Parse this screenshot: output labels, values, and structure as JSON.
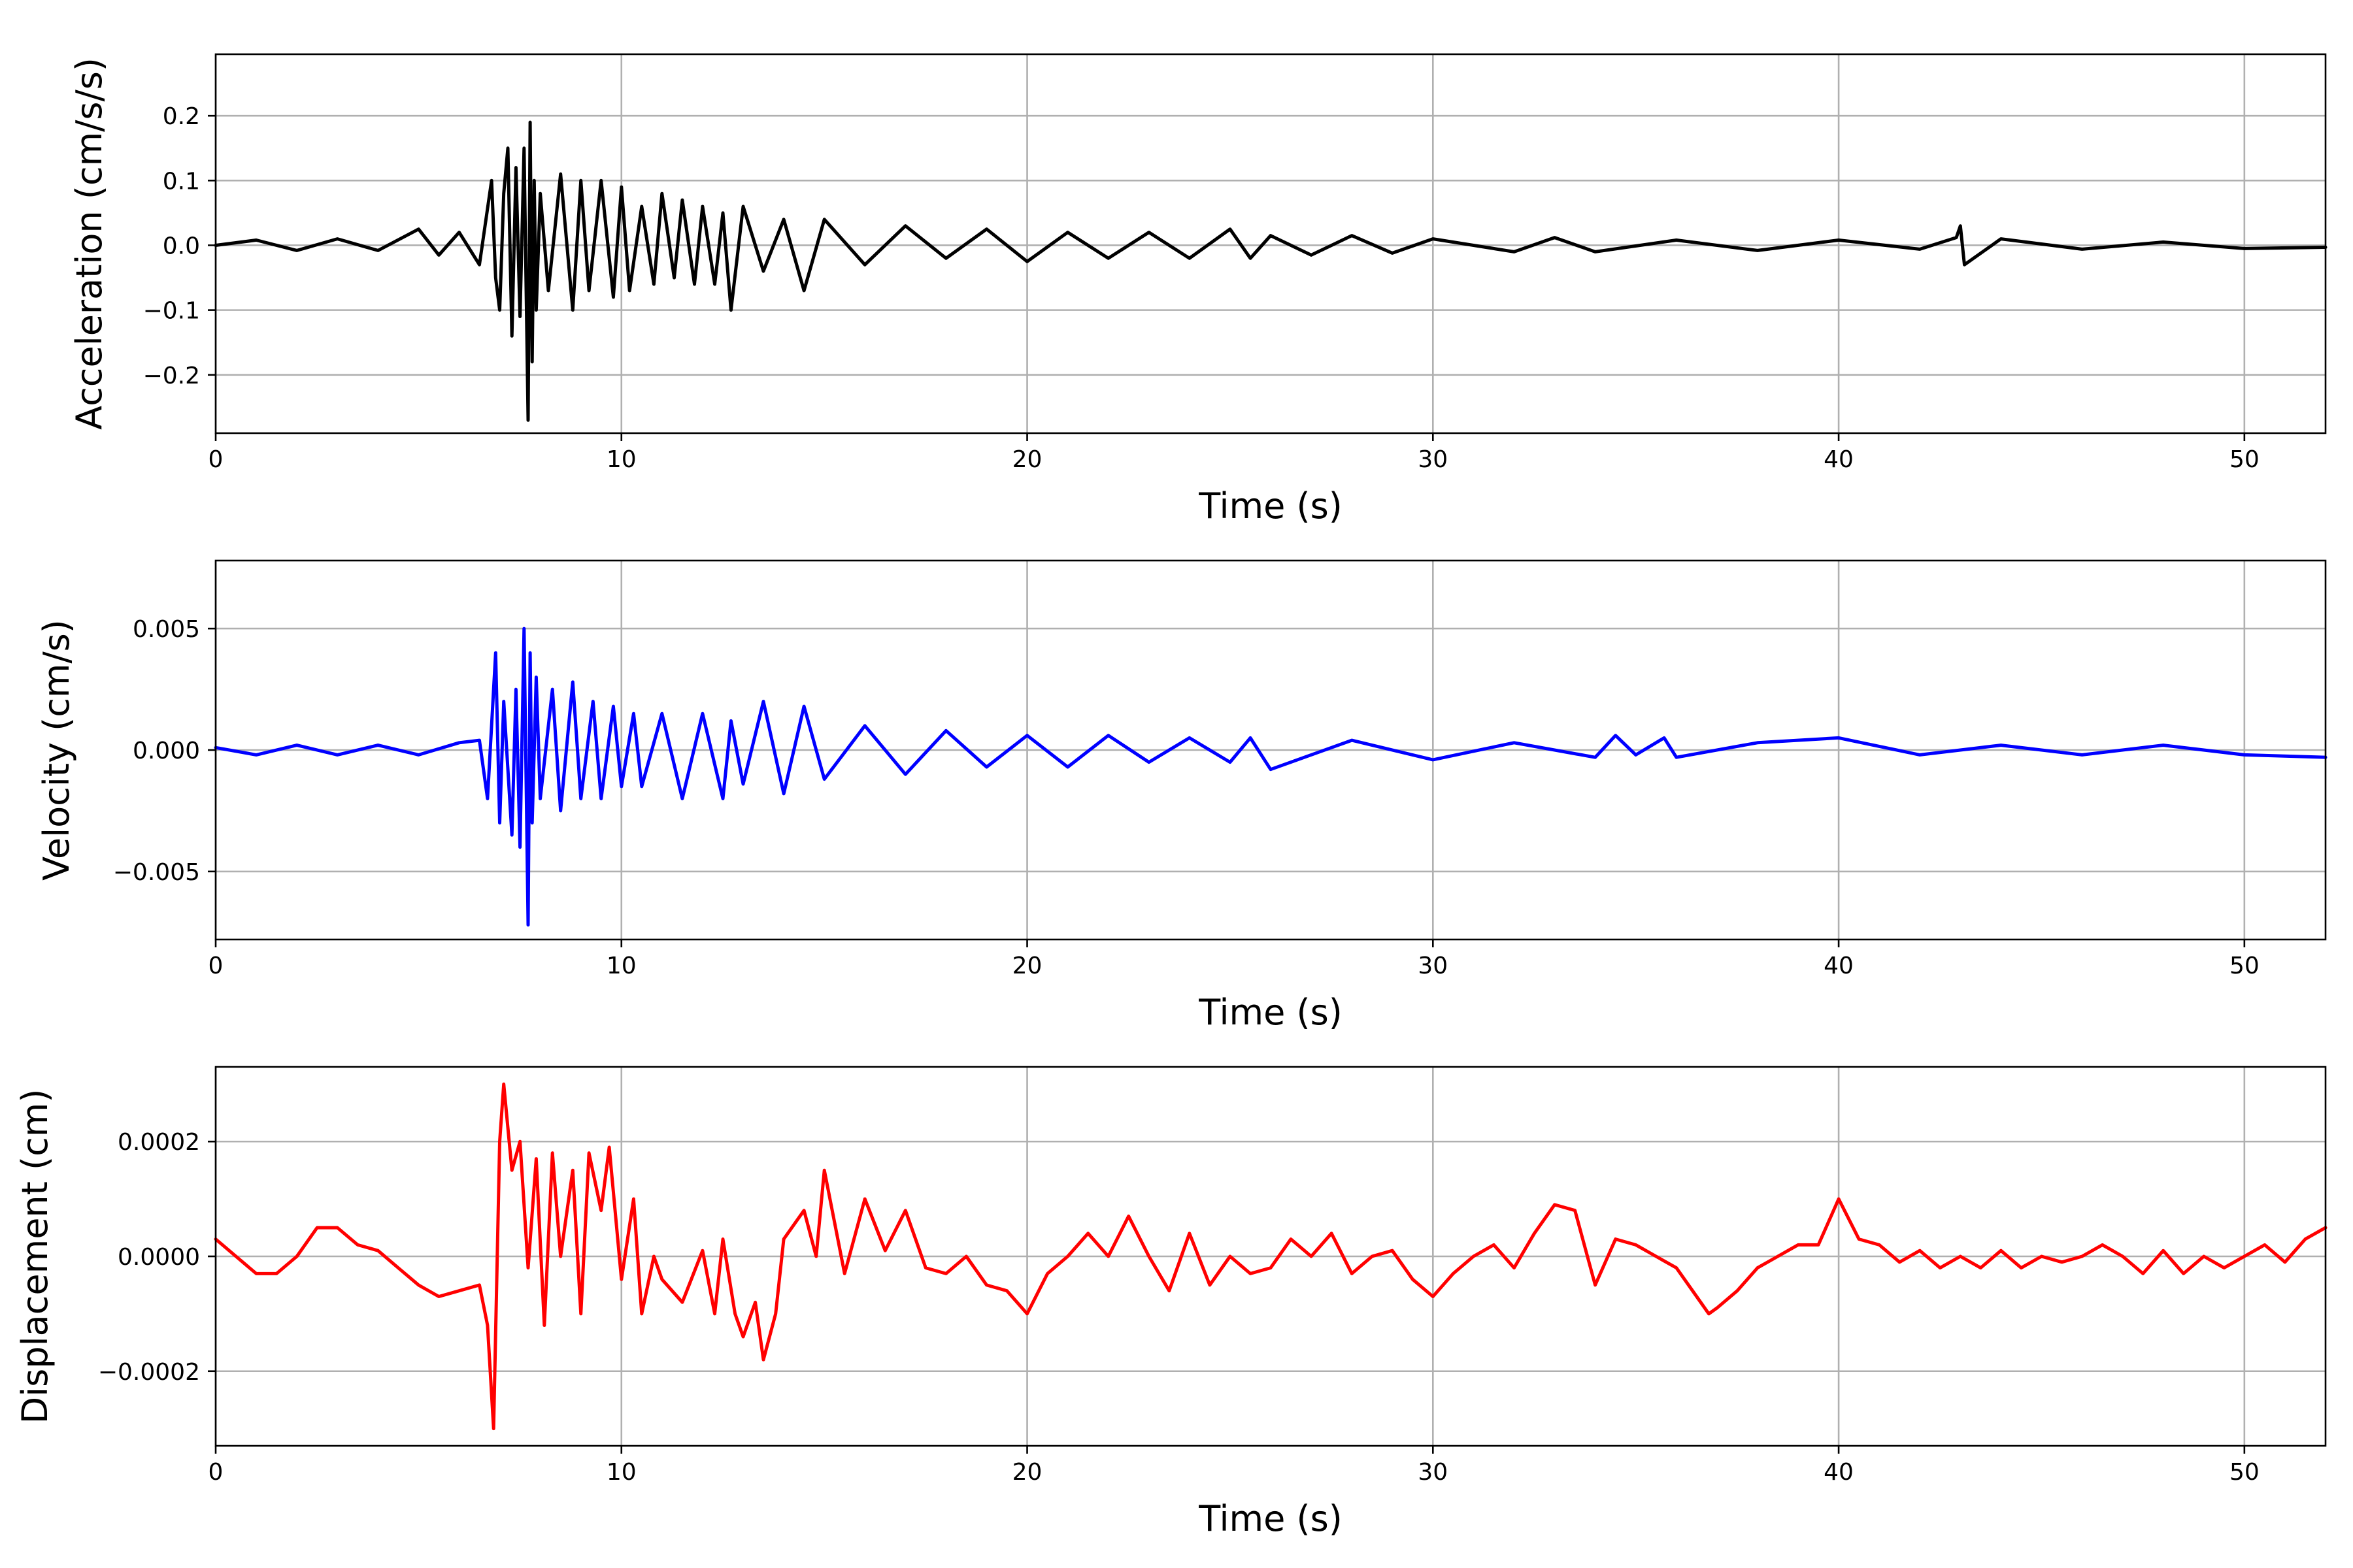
{
  "chart_data": [
    {
      "type": "line",
      "title": "",
      "xlabel": "Time (s)",
      "ylabel": "Acceleration (cm/s/s)",
      "xlim": [
        0,
        52
      ],
      "ylim": [
        -0.29,
        0.295
      ],
      "xticks": [
        0,
        10,
        20,
        30,
        40,
        50
      ],
      "xtick_labels": [
        "0",
        "10",
        "20",
        "30",
        "40",
        "50"
      ],
      "yticks": [
        -0.2,
        -0.1,
        0.0,
        0.1,
        0.2
      ],
      "ytick_labels": [
        "−0.2",
        "−0.1",
        "0.0",
        "0.1",
        "0.2"
      ],
      "grid": true,
      "color": "#000000",
      "series": [
        {
          "x": [
            0,
            1,
            2,
            3,
            4,
            5,
            5.5,
            6,
            6.5,
            6.8,
            6.9,
            7.0,
            7.1,
            7.2,
            7.3,
            7.4,
            7.5,
            7.6,
            7.7,
            7.75,
            7.8,
            7.85,
            7.9,
            8.0,
            8.2,
            8.5,
            8.8,
            9.0,
            9.2,
            9.5,
            9.8,
            10.0,
            10.2,
            10.5,
            10.8,
            11.0,
            11.3,
            11.5,
            11.8,
            12.0,
            12.3,
            12.5,
            12.7,
            13.0,
            13.5,
            14.0,
            14.5,
            15.0,
            16.0,
            17.0,
            18.0,
            19.0,
            20.0,
            21.0,
            22.0,
            23.0,
            24.0,
            25.0,
            25.5,
            26.0,
            27.0,
            28.0,
            29.0,
            30.0,
            32.0,
            33.0,
            34.0,
            36.0,
            38.0,
            40.0,
            42.0,
            42.9,
            43.0,
            43.1,
            44.0,
            46.0,
            48.0,
            50.0,
            52.0
          ],
          "y": [
            0.0,
            0.008,
            -0.008,
            0.01,
            -0.008,
            0.025,
            -0.015,
            0.02,
            -0.03,
            0.1,
            -0.05,
            -0.1,
            0.08,
            0.15,
            -0.14,
            0.12,
            -0.11,
            0.15,
            -0.27,
            0.19,
            -0.18,
            0.1,
            -0.1,
            0.08,
            -0.07,
            0.11,
            -0.1,
            0.1,
            -0.07,
            0.1,
            -0.08,
            0.09,
            -0.07,
            0.06,
            -0.06,
            0.08,
            -0.05,
            0.07,
            -0.06,
            0.06,
            -0.06,
            0.05,
            -0.1,
            0.06,
            -0.04,
            0.04,
            -0.07,
            0.04,
            -0.03,
            0.03,
            -0.02,
            0.025,
            -0.025,
            0.02,
            -0.02,
            0.02,
            -0.02,
            0.025,
            -0.02,
            0.015,
            -0.015,
            0.015,
            -0.012,
            0.01,
            -0.01,
            0.012,
            -0.01,
            0.008,
            -0.008,
            0.008,
            -0.006,
            0.012,
            0.03,
            -0.03,
            0.01,
            -0.006,
            0.005,
            -0.005,
            -0.003
          ]
        }
      ]
    },
    {
      "type": "line",
      "title": "",
      "xlabel": "Time (s)",
      "ylabel": "Velocity (cm/s)",
      "xlim": [
        0,
        52
      ],
      "ylim": [
        -0.0078,
        0.0078
      ],
      "xticks": [
        0,
        10,
        20,
        30,
        40,
        50
      ],
      "xtick_labels": [
        "0",
        "10",
        "20",
        "30",
        "40",
        "50"
      ],
      "yticks": [
        -0.005,
        0.0,
        0.005
      ],
      "ytick_labels": [
        "−0.005",
        "0.000",
        "0.005"
      ],
      "grid": true,
      "color": "#0000ff",
      "series": [
        {
          "x": [
            0,
            1,
            2,
            3,
            4,
            5,
            6,
            6.5,
            6.7,
            6.9,
            7.0,
            7.1,
            7.3,
            7.4,
            7.5,
            7.6,
            7.7,
            7.75,
            7.8,
            7.9,
            8.0,
            8.3,
            8.5,
            8.8,
            9.0,
            9.3,
            9.5,
            9.8,
            10.0,
            10.3,
            10.5,
            11.0,
            11.5,
            12.0,
            12.5,
            12.7,
            13.0,
            13.5,
            14.0,
            14.5,
            15.0,
            16.0,
            17.0,
            18.0,
            19.0,
            20.0,
            21.0,
            22.0,
            23.0,
            24.0,
            25.0,
            25.5,
            26.0,
            28.0,
            30.0,
            32.0,
            34.0,
            34.5,
            35.0,
            35.7,
            36.0,
            38.0,
            40.0,
            42.0,
            44.0,
            46.0,
            48.0,
            50.0,
            52.0
          ],
          "y": [
            0.0001,
            -0.0002,
            0.0002,
            -0.0002,
            0.0002,
            -0.0002,
            0.0003,
            0.0004,
            -0.002,
            0.004,
            -0.003,
            0.002,
            -0.0035,
            0.0025,
            -0.004,
            0.005,
            -0.0072,
            0.004,
            -0.003,
            0.003,
            -0.002,
            0.0025,
            -0.0025,
            0.0028,
            -0.002,
            0.002,
            -0.002,
            0.0018,
            -0.0015,
            0.0015,
            -0.0015,
            0.0015,
            -0.002,
            0.0015,
            -0.002,
            0.0012,
            -0.0014,
            0.002,
            -0.0018,
            0.0018,
            -0.0012,
            0.001,
            -0.001,
            0.0008,
            -0.0007,
            0.0006,
            -0.0007,
            0.0006,
            -0.0005,
            0.0005,
            -0.0005,
            0.0005,
            -0.0008,
            0.0004,
            -0.0004,
            0.0003,
            -0.0003,
            0.0006,
            -0.0002,
            0.0005,
            -0.0003,
            0.0003,
            0.0005,
            -0.0002,
            0.0002,
            -0.0002,
            0.0002,
            -0.0002,
            -0.0003
          ]
        }
      ]
    },
    {
      "type": "line",
      "title": "",
      "xlabel": "Time (s)",
      "ylabel": "Displacement (cm)",
      "xlim": [
        0,
        52
      ],
      "ylim": [
        -0.00033,
        0.00033
      ],
      "xticks": [
        0,
        10,
        20,
        30,
        40,
        50
      ],
      "xtick_labels": [
        "0",
        "10",
        "20",
        "30",
        "40",
        "50"
      ],
      "yticks": [
        -0.0002,
        0.0,
        0.0002
      ],
      "ytick_labels": [
        "−0.0002",
        "0.0000",
        "0.0002"
      ],
      "grid": true,
      "color": "#ff0000",
      "series": [
        {
          "x": [
            0,
            0.5,
            1.0,
            1.5,
            2.0,
            2.5,
            3.0,
            3.5,
            4.0,
            4.5,
            5.0,
            5.5,
            6.0,
            6.5,
            6.7,
            6.85,
            7.0,
            7.1,
            7.3,
            7.5,
            7.7,
            7.9,
            8.1,
            8.3,
            8.5,
            8.8,
            9.0,
            9.2,
            9.5,
            9.7,
            10.0,
            10.3,
            10.5,
            10.8,
            11.0,
            11.5,
            12.0,
            12.3,
            12.5,
            12.8,
            13.0,
            13.3,
            13.5,
            13.8,
            14.0,
            14.5,
            14.8,
            15.0,
            15.5,
            16.0,
            16.5,
            17.0,
            17.5,
            18.0,
            18.5,
            19.0,
            19.5,
            20.0,
            20.5,
            21.0,
            21.5,
            22.0,
            22.5,
            23.0,
            23.5,
            24.0,
            24.5,
            25.0,
            25.5,
            26.0,
            26.5,
            27.0,
            27.5,
            28.0,
            28.5,
            29.0,
            29.5,
            30.0,
            30.5,
            31.0,
            31.5,
            32.0,
            32.5,
            33.0,
            33.5,
            34.0,
            34.5,
            35.0,
            35.5,
            36.0,
            36.5,
            36.8,
            37.0,
            37.5,
            38.0,
            38.5,
            39.0,
            39.5,
            40.0,
            40.5,
            41.0,
            41.5,
            42.0,
            42.5,
            43.0,
            43.5,
            44.0,
            44.5,
            45.0,
            45.5,
            46.0,
            46.5,
            47.0,
            47.5,
            48.0,
            48.5,
            49.0,
            49.5,
            50.0,
            50.5,
            51.0,
            51.5,
            52.0
          ],
          "y": [
            3e-05,
            0.0,
            -3e-05,
            -3e-05,
            0.0,
            5e-05,
            5e-05,
            2e-05,
            1e-05,
            -2e-05,
            -5e-05,
            -7e-05,
            -6e-05,
            -5e-05,
            -0.00012,
            -0.0003,
            0.0002,
            0.0003,
            0.00015,
            0.0002,
            -2e-05,
            0.00017,
            -0.00012,
            0.00018,
            0.0,
            0.00015,
            -0.0001,
            0.00018,
            8e-05,
            0.00019,
            -4e-05,
            0.0001,
            -0.0001,
            0.0,
            -4e-05,
            -8e-05,
            1e-05,
            -0.0001,
            3e-05,
            -0.0001,
            -0.00014,
            -8e-05,
            -0.00018,
            -0.0001,
            3e-05,
            8e-05,
            0.0,
            0.00015,
            -3e-05,
            0.0001,
            1e-05,
            8e-05,
            -2e-05,
            -3e-05,
            0.0,
            -5e-05,
            -6e-05,
            -0.0001,
            -3e-05,
            0.0,
            4e-05,
            0.0,
            7e-05,
            0.0,
            -6e-05,
            4e-05,
            -5e-05,
            0.0,
            -3e-05,
            -2e-05,
            3e-05,
            0.0,
            4e-05,
            -3e-05,
            0.0,
            1e-05,
            -4e-05,
            -7e-05,
            -3e-05,
            0.0,
            2e-05,
            -2e-05,
            4e-05,
            9e-05,
            8e-05,
            -5e-05,
            3e-05,
            2e-05,
            0.0,
            -2e-05,
            -7e-05,
            -0.0001,
            -9e-05,
            -6e-05,
            -2e-05,
            0.0,
            2e-05,
            2e-05,
            0.0001,
            3e-05,
            2e-05,
            -1e-05,
            1e-05,
            -2e-05,
            0.0,
            -2e-05,
            1e-05,
            -2e-05,
            0.0,
            -1e-05,
            0.0,
            2e-05,
            0.0,
            -3e-05,
            1e-05,
            -3e-05,
            0.0,
            -2e-05,
            0.0,
            2e-05,
            -1e-05,
            3e-05,
            5e-05
          ]
        }
      ]
    }
  ]
}
